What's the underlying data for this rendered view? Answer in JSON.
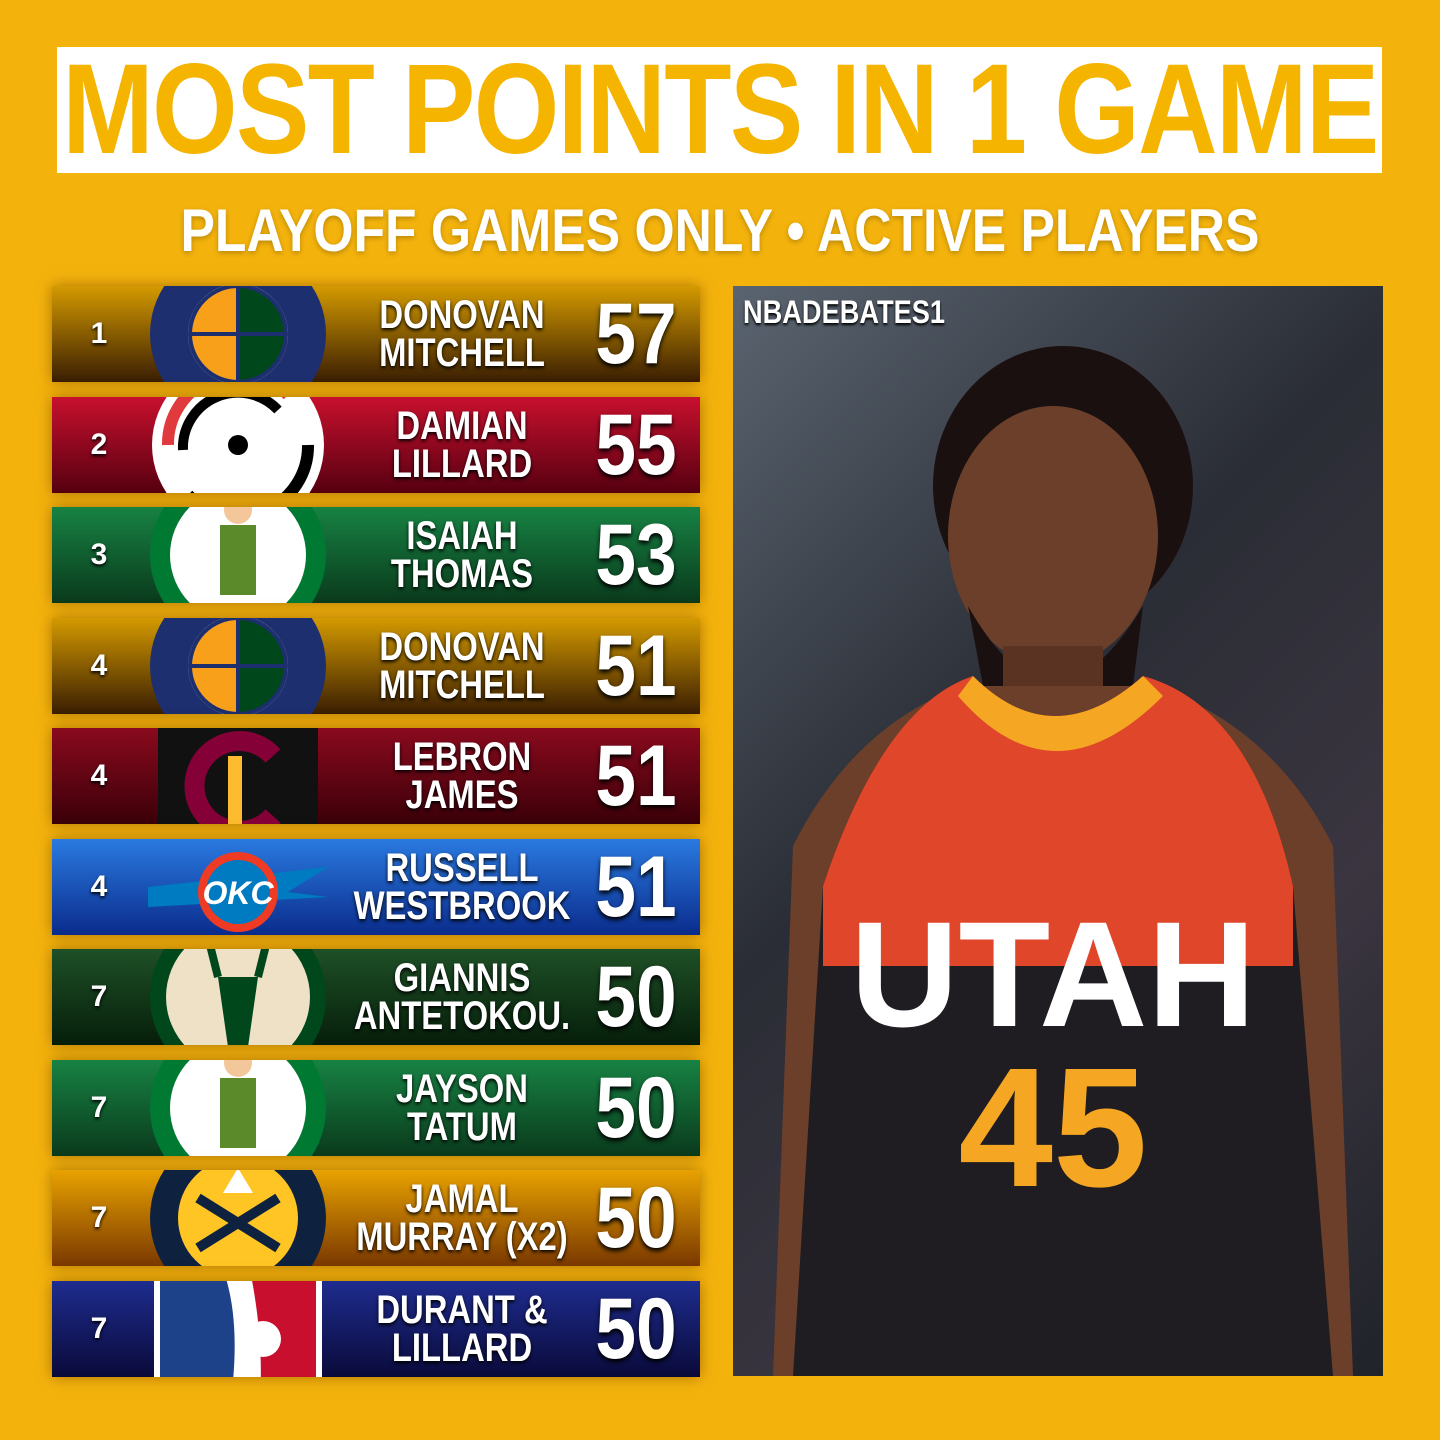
{
  "header": {
    "title": "MOST POINTS IN 1 GAME",
    "subtitle": "PLAYOFF GAMES ONLY • ACTIVE PLAYERS"
  },
  "rows": [
    {
      "rank": "1",
      "team": "jazz",
      "line1": "DONOVAN",
      "line2": "MITCHELL",
      "points": "57",
      "colors": [
        "#D49A00",
        "#3A1E02"
      ]
    },
    {
      "rank": "2",
      "team": "blazers",
      "line1": "DAMIAN",
      "line2": "LILLARD",
      "points": "55",
      "colors": [
        "#C8102E",
        "#560010"
      ]
    },
    {
      "rank": "3",
      "team": "celtics",
      "line1": "ISAIAH",
      "line2": "THOMAS",
      "points": "53",
      "colors": [
        "#178243",
        "#0A3A1C"
      ]
    },
    {
      "rank": "4",
      "team": "jazz",
      "line1": "DONOVAN",
      "line2": "MITCHELL",
      "points": "51",
      "colors": [
        "#D49A00",
        "#3A1E02"
      ]
    },
    {
      "rank": "4",
      "team": "cavaliers",
      "line1": "LEBRON",
      "line2": "JAMES",
      "points": "51",
      "colors": [
        "#8A0A1E",
        "#3A0008"
      ]
    },
    {
      "rank": "4",
      "team": "thunder",
      "line1": "RUSSELL",
      "line2": "WESTBROOK",
      "points": "51",
      "colors": [
        "#2A7AE0",
        "#0A2C8C"
      ]
    },
    {
      "rank": "7",
      "team": "bucks",
      "line1": "GIANNIS",
      "line2": "ANTETOKOU.",
      "points": "50",
      "colors": [
        "#1E5026",
        "#061E0A"
      ]
    },
    {
      "rank": "7",
      "team": "celtics",
      "line1": "JAYSON",
      "line2": "TATUM",
      "points": "50",
      "colors": [
        "#178243",
        "#0A3A1C"
      ]
    },
    {
      "rank": "7",
      "team": "nuggets",
      "line1": "JAMAL",
      "line2": "MURRAY (X2)",
      "points": "50",
      "colors": [
        "#E8A200",
        "#7A3800"
      ]
    },
    {
      "rank": "7",
      "team": "nba",
      "line1": "DURANT &",
      "line2": "LILLARD",
      "points": "50",
      "colors": [
        "#1E2C8E",
        "#0A0A3A"
      ]
    }
  ],
  "photo": {
    "watermark": "NBADEBATES1",
    "jersey_text": "UTAH",
    "jersey_number": "45"
  },
  "colors": {
    "background": "#F4B30C",
    "title": "#F5B400"
  }
}
